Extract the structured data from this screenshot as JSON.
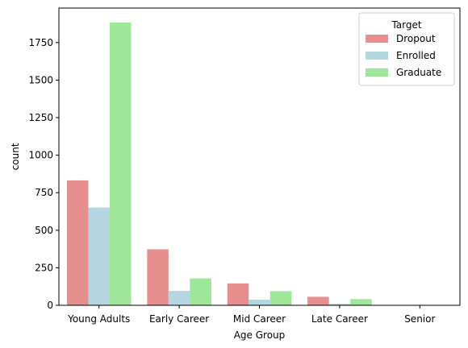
{
  "chart_data": {
    "type": "bar",
    "xlabel": "Age Group",
    "ylabel": "count",
    "ylim": [
      0,
      1980
    ],
    "yticks": [
      0,
      250,
      500,
      750,
      1000,
      1250,
      1500,
      1750
    ],
    "categories": [
      "Young Adults",
      "Early Career",
      "Mid Career",
      "Late Career",
      "Senior"
    ],
    "series": [
      {
        "name": "Dropout",
        "color": "#e78f8e",
        "values": [
          832,
          373,
          146,
          57,
          2
        ]
      },
      {
        "name": "Enrolled",
        "color": "#b3d6e1",
        "values": [
          651,
          96,
          38,
          10,
          0
        ]
      },
      {
        "name": "Graduate",
        "color": "#9ee69a",
        "values": [
          1884,
          179,
          94,
          41,
          0
        ]
      }
    ],
    "legend": {
      "title": "Target",
      "placement": "top-right"
    },
    "grid": false
  }
}
